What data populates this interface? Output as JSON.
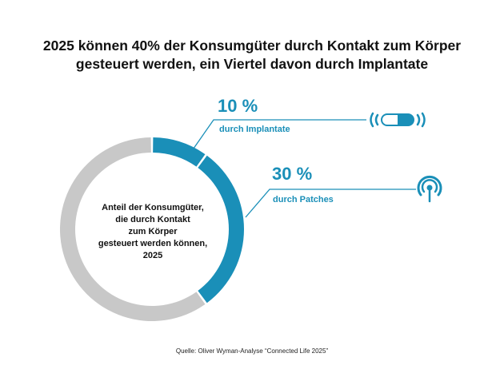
{
  "title": {
    "line1": "2025 können 40% der Konsumgüter durch Kontakt zum Körper",
    "line2": "gesteuert werden, ein Viertel davon durch Implantate"
  },
  "chart_data": {
    "type": "pie",
    "style": "donut",
    "slices": [
      {
        "label": "durch Implantate",
        "value": 10,
        "display": "10 %",
        "color": "#1a8fb8"
      },
      {
        "label": "durch Patches",
        "value": 30,
        "display": "30 %",
        "color": "#1a8fb8"
      },
      {
        "value": 60,
        "color": "#c8c8c8"
      }
    ],
    "center_label": [
      "Anteil der Konsumgüter,",
      "die durch Kontakt",
      "zum Körper",
      "gesteuert werden können,",
      "2025"
    ],
    "legend": "none"
  },
  "icons": {
    "implant": "capsule-signal-icon",
    "patch": "patch-signal-icon"
  },
  "source": "Quelle: Oliver Wyman-Analyse “Connected Life 2025”"
}
